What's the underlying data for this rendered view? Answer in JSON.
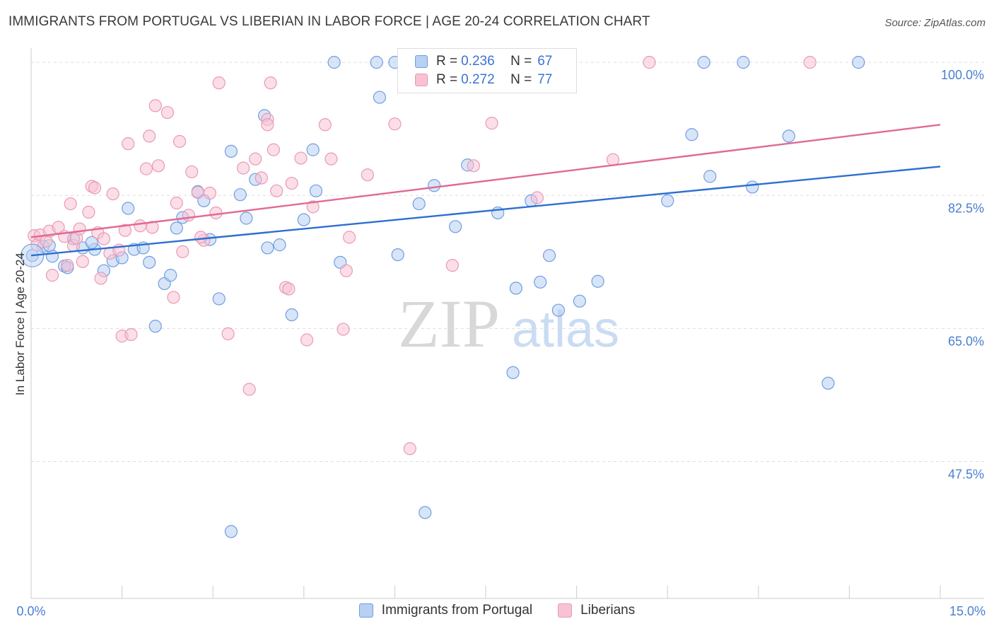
{
  "title": "IMMIGRANTS FROM PORTUGAL VS LIBERIAN IN LABOR FORCE | AGE 20-24 CORRELATION CHART",
  "source": "Source: ZipAtlas.com",
  "watermark": {
    "zip": "ZIP",
    "atlas": "atlas"
  },
  "colors": {
    "blue_fill": "#b8d0f2",
    "blue_stroke": "#6f9ee0",
    "blue_line": "#2d6fd1",
    "pink_fill": "#f8c2d3",
    "pink_stroke": "#e99ab5",
    "pink_line": "#e06a94",
    "tick_text": "#4a7fd0",
    "grid": "#dddddd"
  },
  "legend_top": {
    "rows": [
      {
        "r_label": "R =",
        "r_value": "0.236",
        "n_label": "N =",
        "n_value": "67"
      },
      {
        "r_label": "R =",
        "r_value": "0.272",
        "n_label": "N =",
        "n_value": "77"
      }
    ]
  },
  "legend_bottom": [
    {
      "label": "Immigrants from Portugal"
    },
    {
      "label": "Liberians"
    }
  ],
  "chart_data": {
    "type": "scatter",
    "xlabel": "",
    "ylabel": "In Labor Force | Age 20-24",
    "xlim": [
      0,
      15
    ],
    "ylim": [
      29.5,
      101.5
    ],
    "x_tick_labels": [
      "0.0%",
      "15.0%"
    ],
    "y_ticks": [
      {
        "value": 100,
        "label": "100.0%"
      },
      {
        "value": 82.5,
        "label": "82.5%"
      },
      {
        "value": 65,
        "label": "65.0%"
      },
      {
        "value": 47.5,
        "label": "47.5%"
      }
    ],
    "grid": "horizontal dashed",
    "series": [
      {
        "name": "Immigrants from Portugal",
        "color": "#b8d0f2",
        "trend": {
          "x": [
            0,
            15
          ],
          "y": [
            74.6,
            86.3
          ]
        },
        "points": [
          [
            0.02,
            74.6
          ],
          [
            0.2,
            75.8
          ],
          [
            0.35,
            74.5
          ],
          [
            0.55,
            73.2
          ],
          [
            0.7,
            76.8
          ],
          [
            0.85,
            75.6
          ],
          [
            1.05,
            75.4
          ],
          [
            1.2,
            72.6
          ],
          [
            1.35,
            73.9
          ],
          [
            1.5,
            74.3
          ],
          [
            1.6,
            80.8
          ],
          [
            1.7,
            75.4
          ],
          [
            1.85,
            75.6
          ],
          [
            1.95,
            73.7
          ],
          [
            2.05,
            65.3
          ],
          [
            2.2,
            70.9
          ],
          [
            2.3,
            72.0
          ],
          [
            2.4,
            78.2
          ],
          [
            2.5,
            79.6
          ],
          [
            2.75,
            83.0
          ],
          [
            2.85,
            81.8
          ],
          [
            2.95,
            76.7
          ],
          [
            3.1,
            68.9
          ],
          [
            3.3,
            38.3
          ],
          [
            3.3,
            88.3
          ],
          [
            3.45,
            82.6
          ],
          [
            3.55,
            79.5
          ],
          [
            3.7,
            84.6
          ],
          [
            3.85,
            93.0
          ],
          [
            3.9,
            75.6
          ],
          [
            4.1,
            76.0
          ],
          [
            4.3,
            66.8
          ],
          [
            4.5,
            79.3
          ],
          [
            4.65,
            88.5
          ],
          [
            4.7,
            83.1
          ],
          [
            5.0,
            100.0
          ],
          [
            5.1,
            73.7
          ],
          [
            5.7,
            100.0
          ],
          [
            5.75,
            95.4
          ],
          [
            6.0,
            100.0
          ],
          [
            6.05,
            74.7
          ],
          [
            6.4,
            81.4
          ],
          [
            6.5,
            40.8
          ],
          [
            6.65,
            83.8
          ],
          [
            7.0,
            78.4
          ],
          [
            7.2,
            86.5
          ],
          [
            7.7,
            80.2
          ],
          [
            7.95,
            59.2
          ],
          [
            8.0,
            70.3
          ],
          [
            8.25,
            81.8
          ],
          [
            8.4,
            71.1
          ],
          [
            8.55,
            74.6
          ],
          [
            8.7,
            67.4
          ],
          [
            9.05,
            68.6
          ],
          [
            9.35,
            71.2
          ],
          [
            10.5,
            81.8
          ],
          [
            10.9,
            90.5
          ],
          [
            11.1,
            100.0
          ],
          [
            11.2,
            85.0
          ],
          [
            11.75,
            100.0
          ],
          [
            11.9,
            83.6
          ],
          [
            12.5,
            90.3
          ],
          [
            13.15,
            57.8
          ],
          [
            13.65,
            100.0
          ],
          [
            0.3,
            75.9
          ],
          [
            1.0,
            76.3
          ],
          [
            0.6,
            73.0
          ]
        ]
      },
      {
        "name": "Liberians",
        "color": "#f8c2d3",
        "trend": {
          "x": [
            0,
            15
          ],
          "y": [
            77.0,
            91.8
          ]
        },
        "points": [
          [
            0.05,
            77.2
          ],
          [
            0.1,
            76.0
          ],
          [
            0.15,
            77.3
          ],
          [
            0.25,
            76.5
          ],
          [
            0.3,
            77.8
          ],
          [
            0.35,
            72.0
          ],
          [
            0.45,
            78.3
          ],
          [
            0.55,
            77.1
          ],
          [
            0.6,
            73.3
          ],
          [
            0.65,
            81.4
          ],
          [
            0.7,
            75.9
          ],
          [
            0.75,
            76.9
          ],
          [
            0.8,
            78.1
          ],
          [
            0.85,
            73.8
          ],
          [
            0.95,
            80.3
          ],
          [
            1.0,
            83.7
          ],
          [
            1.05,
            83.5
          ],
          [
            1.1,
            77.6
          ],
          [
            1.15,
            71.6
          ],
          [
            1.2,
            76.8
          ],
          [
            1.3,
            74.9
          ],
          [
            1.35,
            82.7
          ],
          [
            1.45,
            75.3
          ],
          [
            1.5,
            64.0
          ],
          [
            1.55,
            77.9
          ],
          [
            1.6,
            89.3
          ],
          [
            1.65,
            64.2
          ],
          [
            1.8,
            78.5
          ],
          [
            1.9,
            86.0
          ],
          [
            1.95,
            90.3
          ],
          [
            2.0,
            78.3
          ],
          [
            2.05,
            94.3
          ],
          [
            2.1,
            86.4
          ],
          [
            2.25,
            93.4
          ],
          [
            2.35,
            69.1
          ],
          [
            2.4,
            81.5
          ],
          [
            2.45,
            89.6
          ],
          [
            2.5,
            75.1
          ],
          [
            2.6,
            79.9
          ],
          [
            2.65,
            85.6
          ],
          [
            2.75,
            82.9
          ],
          [
            2.85,
            76.6
          ],
          [
            2.95,
            82.8
          ],
          [
            3.05,
            80.2
          ],
          [
            3.1,
            97.3
          ],
          [
            3.25,
            64.3
          ],
          [
            3.5,
            86.1
          ],
          [
            3.6,
            57.0
          ],
          [
            3.7,
            87.3
          ],
          [
            3.8,
            84.8
          ],
          [
            3.9,
            92.5
          ],
          [
            3.95,
            97.3
          ],
          [
            4.0,
            88.5
          ],
          [
            4.05,
            83.1
          ],
          [
            4.2,
            70.4
          ],
          [
            4.25,
            70.2
          ],
          [
            4.3,
            84.1
          ],
          [
            4.45,
            87.4
          ],
          [
            4.55,
            63.5
          ],
          [
            4.65,
            81.0
          ],
          [
            4.85,
            91.8
          ],
          [
            4.95,
            87.3
          ],
          [
            5.15,
            64.9
          ],
          [
            5.2,
            72.6
          ],
          [
            5.25,
            77.0
          ],
          [
            5.55,
            85.2
          ],
          [
            6.0,
            91.9
          ],
          [
            6.25,
            49.2
          ],
          [
            6.95,
            73.3
          ],
          [
            7.3,
            86.4
          ],
          [
            7.6,
            92.0
          ],
          [
            8.35,
            82.2
          ],
          [
            9.6,
            87.2
          ],
          [
            10.2,
            100.0
          ],
          [
            12.85,
            100.0
          ],
          [
            3.9,
            91.8
          ],
          [
            2.8,
            77.0
          ]
        ]
      }
    ]
  }
}
